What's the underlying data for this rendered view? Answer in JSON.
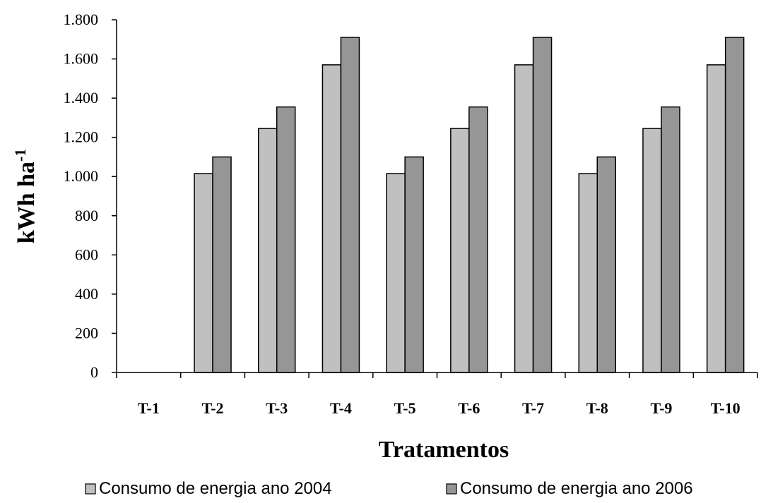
{
  "chart_data": {
    "type": "bar",
    "title": "",
    "xlabel": "Tratamentos",
    "ylabel": "kWh ha",
    "ylabel_superscript": "-1",
    "categories": [
      "T-1",
      "T-2",
      "T-3",
      "T-4",
      "T-5",
      "T-6",
      "T-7",
      "T-8",
      "T-9",
      "T-10"
    ],
    "series": [
      {
        "name": "Consumo de energia ano 2004",
        "color": "#c0c0c0",
        "values": [
          0,
          1015,
          1245,
          1570,
          1015,
          1245,
          1570,
          1015,
          1245,
          1570
        ]
      },
      {
        "name": "Consumo de energia ano 2006",
        "color": "#969696",
        "values": [
          0,
          1100,
          1355,
          1710,
          1100,
          1355,
          1710,
          1100,
          1355,
          1710
        ]
      }
    ],
    "ylim": [
      0,
      1800
    ],
    "yticks": [
      0,
      200,
      400,
      600,
      800,
      1000,
      1200,
      1400,
      1600,
      1800
    ],
    "ytick_labels": [
      "0",
      "200",
      "400",
      "600",
      "800",
      "1.000",
      "1.200",
      "1.400",
      "1.600",
      "1.800"
    ],
    "grid": false,
    "legend": "bottom"
  }
}
